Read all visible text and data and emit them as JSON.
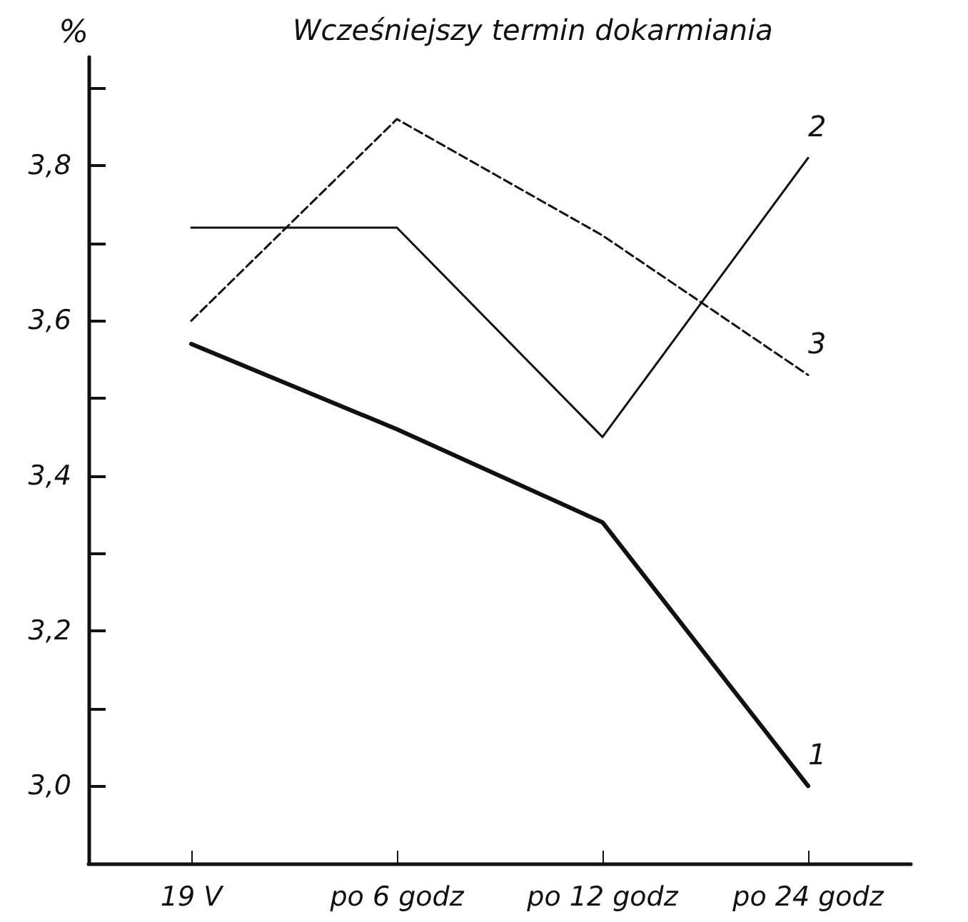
{
  "chart_data": {
    "type": "line",
    "title": "Wcześniejszy termin dokarmiania",
    "ylabel": "%",
    "categories": [
      "19 V",
      "po 6 godz",
      "po 12 godz",
      "po 24 godz"
    ],
    "series": [
      {
        "name": "1",
        "color": "#111111",
        "values": [
          3.57,
          3.46,
          3.34,
          3.0
        ]
      },
      {
        "name": "2",
        "color": "#111111",
        "values": [
          3.72,
          3.72,
          3.45,
          3.81
        ]
      },
      {
        "name": "3",
        "color": "#111111",
        "values": [
          3.6,
          3.86,
          3.71,
          3.53
        ],
        "line_style": "dashed"
      }
    ],
    "ylim": [
      2.9,
      3.94
    ],
    "yticks": [
      {
        "value": 3.0,
        "label": "3,0"
      },
      {
        "value": 3.1,
        "label": null
      },
      {
        "value": 3.2,
        "label": "3,2"
      },
      {
        "value": 3.3,
        "label": null
      },
      {
        "value": 3.4,
        "label": "3,4"
      },
      {
        "value": 3.5,
        "label": null
      },
      {
        "value": 3.6,
        "label": "3,6"
      },
      {
        "value": 3.7,
        "label": null
      },
      {
        "value": 3.8,
        "label": "3,8"
      },
      {
        "value": 3.9,
        "label": null
      }
    ],
    "grid": false,
    "legend": false,
    "marker": "none"
  }
}
